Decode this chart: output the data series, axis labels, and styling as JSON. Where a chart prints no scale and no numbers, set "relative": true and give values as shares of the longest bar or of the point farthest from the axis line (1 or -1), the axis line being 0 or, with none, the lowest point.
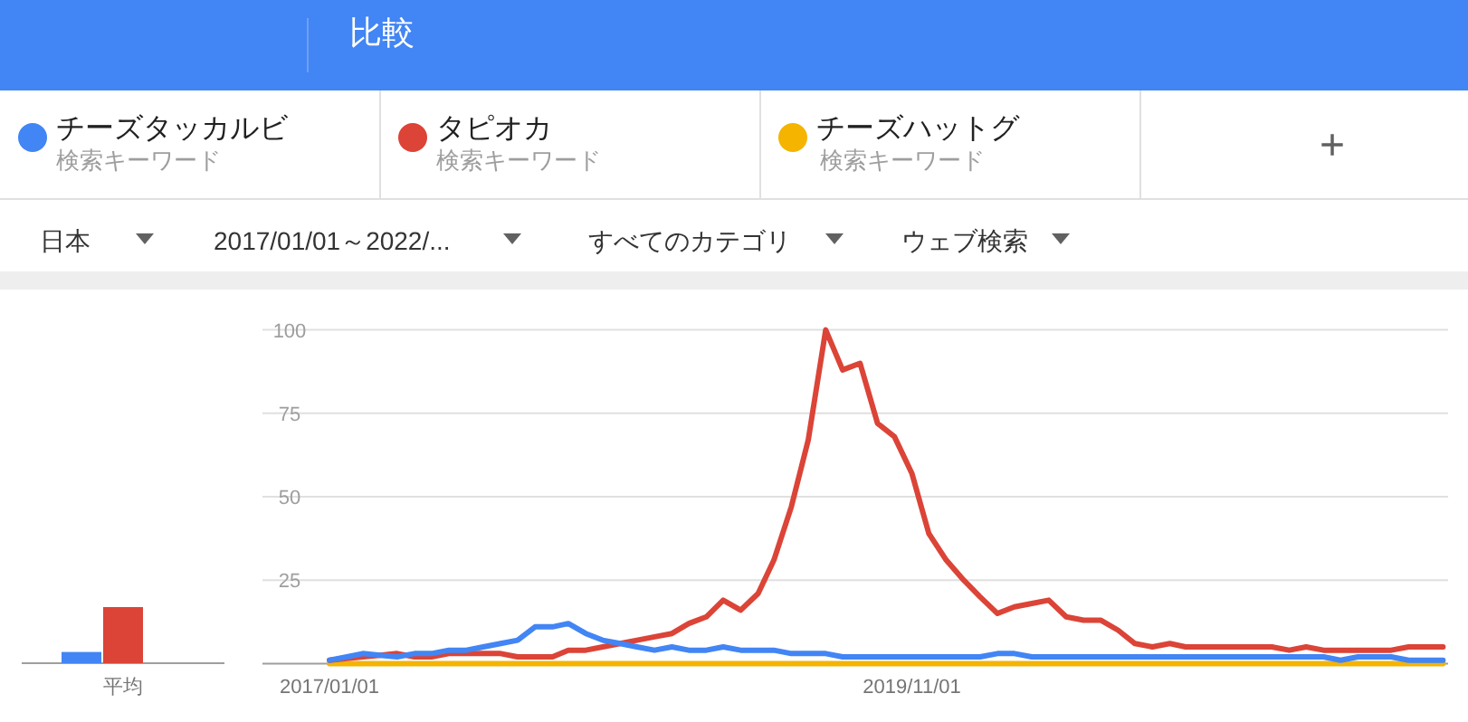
{
  "chart_data": [
    {
      "type": "other",
      "annotations": [
        "比較",
        "検索キーワード",
        "検索キーワード",
        "検索キーワード",
        "+",
        "日本",
        "2017/01/01～2022/...",
        "すべてのカテゴリ",
        "ウェブ検索"
      ]
    },
    {
      "type": "bar",
      "categories": [
        "平均"
      ],
      "relative": true,
      "series": [
        {
          "color": "#4285f4",
          "values": [
            0.2
          ]
        },
        {
          "color": "#db4437",
          "values": [
            1
          ]
        },
        {
          "color": "#f4b400",
          "values": [
            0
          ]
        }
      ]
    },
    {
      "type": "line",
      "x": [
        "2017-01",
        "2017-02",
        "2017-03",
        "2017-04",
        "2017-05",
        "2017-06",
        "2017-07",
        "2017-08",
        "2017-09",
        "2017-10",
        "2017-11",
        "2017-12",
        "2018-01",
        "2018-02",
        "2018-03",
        "2018-04",
        "2018-05",
        "2018-06",
        "2018-07",
        "2018-08",
        "2018-09",
        "2018-10",
        "2018-11",
        "2018-12",
        "2019-01",
        "2019-02",
        "2019-03",
        "2019-04",
        "2019-05",
        "2019-06",
        "2019-07",
        "2019-08",
        "2019-09",
        "2019-10",
        "2019-11",
        "2019-12",
        "2020-01",
        "2020-02",
        "2020-03",
        "2020-04",
        "2020-05",
        "2020-06",
        "2020-07",
        "2020-08",
        "2020-09",
        "2020-10",
        "2020-11",
        "2020-12",
        "2021-01",
        "2021-02",
        "2021-03",
        "2021-04",
        "2021-05",
        "2021-06",
        "2021-07",
        "2021-08",
        "2021-09",
        "2021-10",
        "2021-11",
        "2021-12",
        "2022-01",
        "2022-02",
        "2022-03",
        "2022-04",
        "2022-05",
        "2022-06"
      ],
      "xlim": [
        "2016-09-04",
        "2022-06-10"
      ],
      "xticks": [
        {
          "value": "2017-01-01",
          "label": "2017/01/01"
        },
        {
          "value": "2019-11-01",
          "label": "2019/11/01"
        }
      ],
      "ylim": [
        0,
        100
      ],
      "yticks": [
        {
          "value": 0,
          "label": null
        },
        25,
        50,
        75,
        100
      ],
      "grid": "y",
      "legend": "top",
      "line_style": "solid",
      "marker": "none",
      "series": [
        {
          "name": "チーズタッカルビ",
          "color": "#4285f4",
          "values": [
            1,
            2,
            3,
            2.5,
            2,
            3,
            3,
            4,
            4,
            5,
            6,
            7,
            11,
            11,
            12,
            9,
            7,
            6,
            5,
            4,
            5,
            4,
            4,
            5,
            4,
            4,
            4,
            3,
            3,
            3,
            2,
            2,
            2,
            2,
            2,
            2,
            2,
            2,
            2,
            3,
            3,
            2,
            2,
            2,
            2,
            2,
            2,
            2,
            2,
            2,
            2,
            2,
            2,
            2,
            2,
            2,
            2,
            2,
            2,
            1,
            2,
            2,
            2,
            1,
            1,
            1
          ]
        },
        {
          "name": "タピオカ",
          "color": "#db4437",
          "values": [
            1,
            1.5,
            2,
            2.5,
            3,
            2,
            2,
            3,
            3,
            3,
            3,
            2,
            2,
            2,
            4,
            4,
            5,
            6,
            7,
            8,
            9,
            12,
            14,
            19,
            16,
            21,
            31,
            47,
            67,
            100,
            88,
            90,
            72,
            68,
            57,
            39,
            31,
            25,
            20,
            15,
            17,
            18,
            19,
            14,
            13,
            13,
            10,
            6,
            5,
            6,
            5,
            5,
            5,
            5,
            5,
            5,
            4,
            5,
            4,
            4,
            4,
            4,
            4,
            5,
            5,
            5
          ]
        },
        {
          "name": "チーズハットグ",
          "color": "#f4b400",
          "values": [
            0,
            0,
            0,
            0,
            0,
            0,
            0,
            0,
            0,
            0,
            0,
            0,
            0,
            0,
            0,
            0,
            0,
            0,
            0,
            0,
            0,
            0,
            0,
            0,
            0,
            0,
            0,
            0,
            0,
            0,
            0,
            0,
            0,
            0,
            0,
            0,
            0,
            0,
            0,
            0,
            0,
            0,
            0,
            0,
            0,
            0,
            0,
            0,
            0,
            0,
            0,
            0,
            0,
            0,
            0,
            0,
            0,
            0,
            0,
            0,
            0,
            0,
            0,
            0,
            0,
            0
          ]
        }
      ]
    }
  ]
}
